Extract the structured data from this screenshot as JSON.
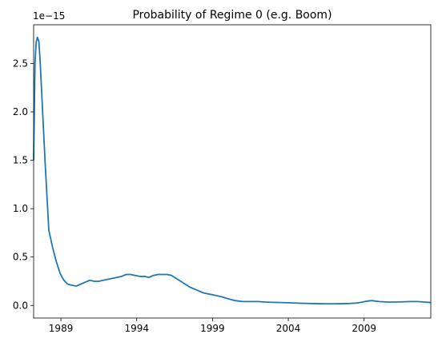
{
  "chart_data": {
    "type": "line",
    "title": "Probability of Regime 0 (e.g. Boom)",
    "xlabel": "",
    "ylabel": "",
    "y_offset_text": "1e−15",
    "xlim": [
      1987.2,
      2013.4
    ],
    "ylim": [
      -0.13,
      2.9
    ],
    "x_ticks": [
      1989,
      1994,
      1999,
      2004,
      2009
    ],
    "x_tick_labels": [
      "1989",
      "1994",
      "1999",
      "2004",
      "2009"
    ],
    "y_ticks": [
      0.0,
      0.5,
      1.0,
      1.5,
      2.0,
      2.5
    ],
    "y_tick_labels": [
      "0.0",
      "0.5",
      "1.0",
      "1.5",
      "2.0",
      "2.5"
    ],
    "grid": false,
    "series": [
      {
        "color": "#1f77b4",
        "x": [
          1987.2,
          1987.29,
          1987.37,
          1987.45,
          1987.54,
          1987.62,
          1987.7,
          1987.95,
          1988.2,
          1988.45,
          1988.7,
          1988.95,
          1989.2,
          1989.45,
          1989.7,
          1990.0,
          1990.3,
          1990.6,
          1990.9,
          1991.2,
          1991.5,
          1991.8,
          1992.1,
          1992.4,
          1992.7,
          1993.0,
          1993.3,
          1993.6,
          1993.9,
          1994.2,
          1994.5,
          1994.8,
          1995.1,
          1995.4,
          1995.7,
          1996.0,
          1996.3,
          1996.6,
          1996.9,
          1997.2,
          1997.5,
          1997.8,
          1998.1,
          1998.4,
          1998.7,
          1999.0,
          1999.3,
          1999.6,
          2000.0,
          2000.5,
          2001.0,
          2001.5,
          2002.0,
          2002.5,
          2003.0,
          2003.5,
          2004.0,
          2004.5,
          2005.0,
          2005.5,
          2006.0,
          2006.5,
          2007.0,
          2007.5,
          2008.0,
          2008.5,
          2008.9,
          2009.2,
          2009.5,
          2010.0,
          2010.5,
          2011.0,
          2011.5,
          2012.0,
          2012.5,
          2013.0,
          2013.4
        ],
        "y": [
          1.5,
          2.5,
          2.72,
          2.77,
          2.73,
          2.55,
          2.3,
          1.5,
          0.78,
          0.6,
          0.45,
          0.33,
          0.26,
          0.22,
          0.21,
          0.2,
          0.22,
          0.24,
          0.26,
          0.25,
          0.25,
          0.26,
          0.27,
          0.28,
          0.29,
          0.3,
          0.32,
          0.32,
          0.31,
          0.3,
          0.3,
          0.29,
          0.31,
          0.32,
          0.32,
          0.32,
          0.31,
          0.28,
          0.25,
          0.22,
          0.19,
          0.17,
          0.15,
          0.13,
          0.12,
          0.11,
          0.1,
          0.09,
          0.07,
          0.05,
          0.04,
          0.04,
          0.04,
          0.035,
          0.032,
          0.03,
          0.028,
          0.025,
          0.022,
          0.02,
          0.018,
          0.017,
          0.017,
          0.018,
          0.02,
          0.025,
          0.035,
          0.045,
          0.05,
          0.04,
          0.035,
          0.035,
          0.037,
          0.04,
          0.04,
          0.035,
          0.03
        ]
      }
    ]
  }
}
